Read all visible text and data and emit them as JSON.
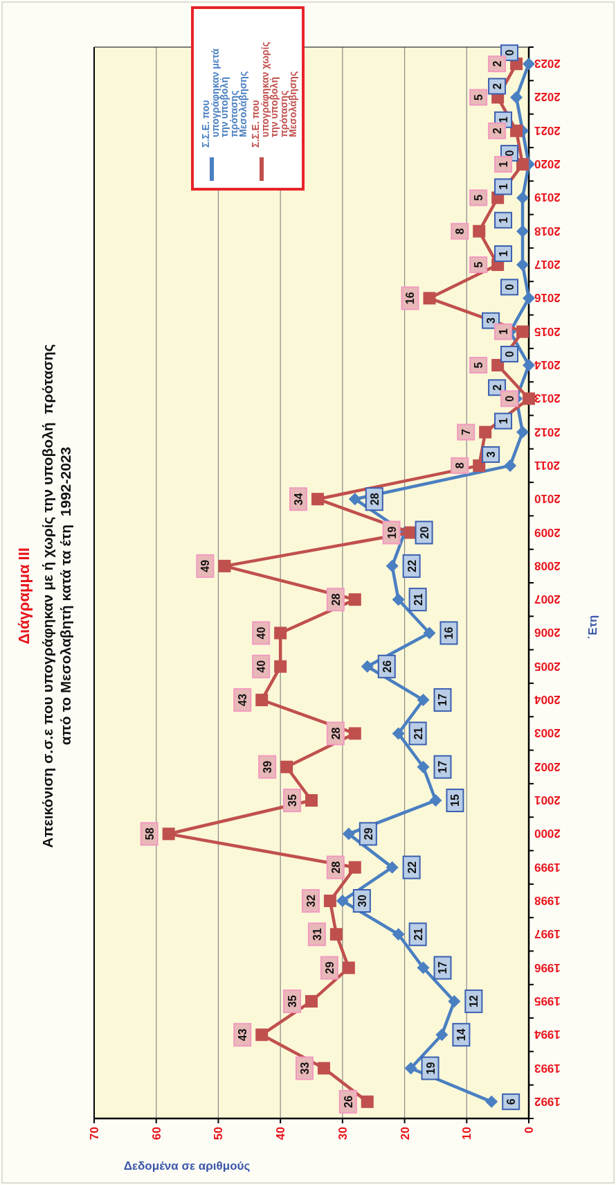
{
  "chart_data": {
    "type": "line",
    "orientation": "horizontal",
    "title": "Διάγραμμα III",
    "subtitle": "Απεικόνιση σ.σ.ε που υπογράφηκαν με ή χωρίς την υποβολή  πρότασης\nαπό το Μεσολαβητή κατά τα έτη  1992-2023",
    "xlabel": "Δεδομένα σε αριθμούς",
    "ylabel": "΄Ετη",
    "categories": [
      "2023",
      "2022",
      "2021",
      "2020",
      "2019",
      "2018",
      "2017",
      "2016",
      "2015",
      "2014",
      "2013",
      "2012",
      "2011",
      "2010",
      "2009",
      "2008",
      "2007",
      "2006",
      "2005",
      "2004",
      "2003",
      "2002",
      "2001",
      "2000",
      "1999",
      "1998",
      "1997",
      "1996",
      "1995",
      "1994",
      "1993",
      "1992"
    ],
    "series": [
      {
        "name": "Σ.Σ.Ε. που υπογράφηκαν  μετά την υποβολή πρότασης Μεσολάβησης",
        "color": "#4a7fc1",
        "marker": "diamond",
        "values": [
          0,
          2,
          1,
          0,
          1,
          1,
          1,
          0,
          3,
          0,
          2,
          1,
          3,
          28,
          20,
          22,
          21,
          16,
          26,
          17,
          21,
          17,
          15,
          29,
          22,
          30,
          21,
          17,
          12,
          14,
          19,
          6
        ]
      },
      {
        "name": "Σ.Σ.Ε. που υπογράφηκαν  χωρίς την υποβολή πρότασης Μεσολάβησης",
        "color": "#c0504d",
        "marker": "square",
        "values": [
          2,
          5,
          2,
          1,
          5,
          8,
          5,
          16,
          1,
          5,
          0,
          7,
          8,
          34,
          19,
          49,
          28,
          40,
          40,
          43,
          28,
          39,
          35,
          58,
          28,
          32,
          31,
          29,
          35,
          43,
          33,
          26
        ]
      }
    ],
    "xlim": [
      70,
      0
    ],
    "xticks": [
      70,
      60,
      50,
      40,
      30,
      20,
      10,
      0
    ],
    "grid": "x",
    "legend": "top",
    "data_labels": true
  }
}
